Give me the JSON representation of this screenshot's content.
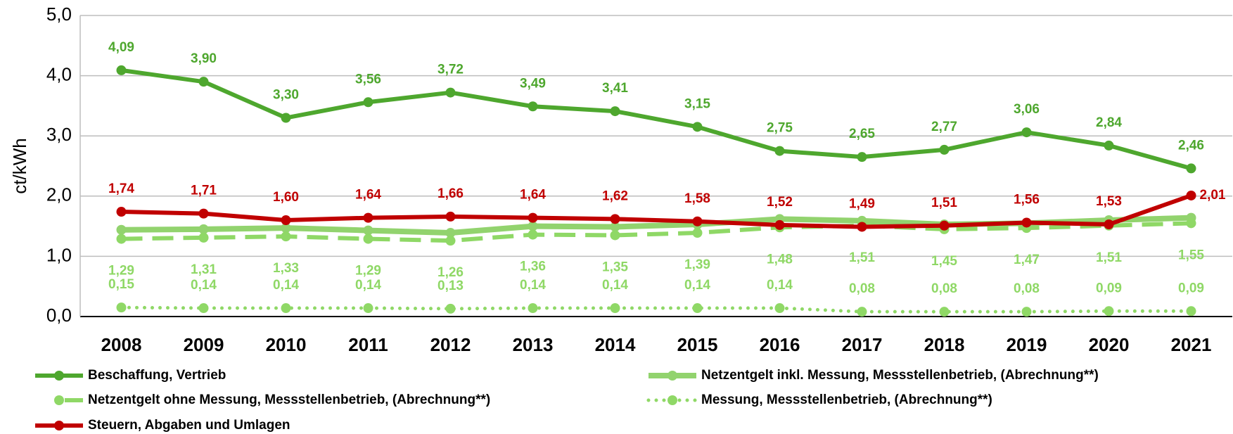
{
  "chart_data": {
    "type": "line",
    "ylabel": "ct/kWh",
    "categories": [
      "2008",
      "2009",
      "2010",
      "2011",
      "2012",
      "2013",
      "2014",
      "2015",
      "2016",
      "2017",
      "2018",
      "2019",
      "2020",
      "2021"
    ],
    "ylim": [
      0,
      5
    ],
    "yticks": [
      {
        "value": 0,
        "label": "0,0"
      },
      {
        "value": 1,
        "label": "1,0"
      },
      {
        "value": 2,
        "label": "2,0"
      },
      {
        "value": 3,
        "label": "3,0"
      },
      {
        "value": 4,
        "label": "4,0"
      },
      {
        "value": 5,
        "label": "5,0"
      }
    ],
    "grid": true,
    "legend": "bottom",
    "series": [
      {
        "name": "Beschaffung, Vertrieb",
        "color": "#4ea72e",
        "style": "solid",
        "label_pos": "above",
        "values": [
          4.09,
          3.9,
          3.3,
          3.56,
          3.72,
          3.49,
          3.41,
          3.15,
          2.75,
          2.65,
          2.77,
          3.06,
          2.84,
          2.46
        ],
        "value_labels": [
          "4,09",
          "3,90",
          "3,30",
          "3,56",
          "3,72",
          "3,49",
          "3,41",
          "3,15",
          "2,75",
          "2,65",
          "2,77",
          "3,06",
          "2,84",
          "2,46"
        ]
      },
      {
        "name": "Netzentgelt inkl. Messung, Messstellenbetrieb, (Abrechnung**)",
        "color": "#92d36e",
        "style": "thick",
        "values": [
          1.44,
          1.45,
          1.47,
          1.43,
          1.39,
          1.5,
          1.49,
          1.53,
          1.62,
          1.59,
          1.53,
          1.55,
          1.6,
          1.64
        ]
      },
      {
        "name": "Netzentgelt ohne Messung, Messstellenbetrieb, (Abrechnung**)",
        "color": "#8fd866",
        "style": "dashed",
        "label_pos": "below",
        "values": [
          1.29,
          1.31,
          1.33,
          1.29,
          1.26,
          1.36,
          1.35,
          1.39,
          1.48,
          1.51,
          1.45,
          1.47,
          1.51,
          1.55
        ],
        "value_labels": [
          "1,29",
          "1,31",
          "1,33",
          "1,29",
          "1,26",
          "1,36",
          "1,35",
          "1,39",
          "1,48",
          "1,51",
          "1,45",
          "1,47",
          "1,51",
          "1,55"
        ]
      },
      {
        "name": "Messung, Messstellenbetrieb, (Abrechnung**)",
        "color": "#8fd866",
        "style": "dotted",
        "label_pos": "above",
        "values": [
          0.15,
          0.14,
          0.14,
          0.14,
          0.13,
          0.14,
          0.14,
          0.14,
          0.14,
          0.08,
          0.08,
          0.08,
          0.09,
          0.09
        ],
        "value_labels": [
          "0,15",
          "0,14",
          "0,14",
          "0,14",
          "0,13",
          "0,14",
          "0,14",
          "0,14",
          "0,14",
          "0,08",
          "0,08",
          "0,08",
          "0,09",
          "0,09"
        ]
      },
      {
        "name": "Steuern, Abgaben und Umlagen",
        "color": "#c00000",
        "style": "solid",
        "label_pos": "above",
        "values": [
          1.74,
          1.71,
          1.6,
          1.64,
          1.66,
          1.64,
          1.62,
          1.58,
          1.52,
          1.49,
          1.51,
          1.56,
          1.53,
          2.01
        ],
        "value_labels": [
          "1,74",
          "1,71",
          "1,60",
          "1,64",
          "1,66",
          "1,64",
          "1,62",
          "1,58",
          "1,52",
          "1,49",
          "1,51",
          "1,56",
          "1,53",
          "2,01"
        ]
      }
    ]
  }
}
